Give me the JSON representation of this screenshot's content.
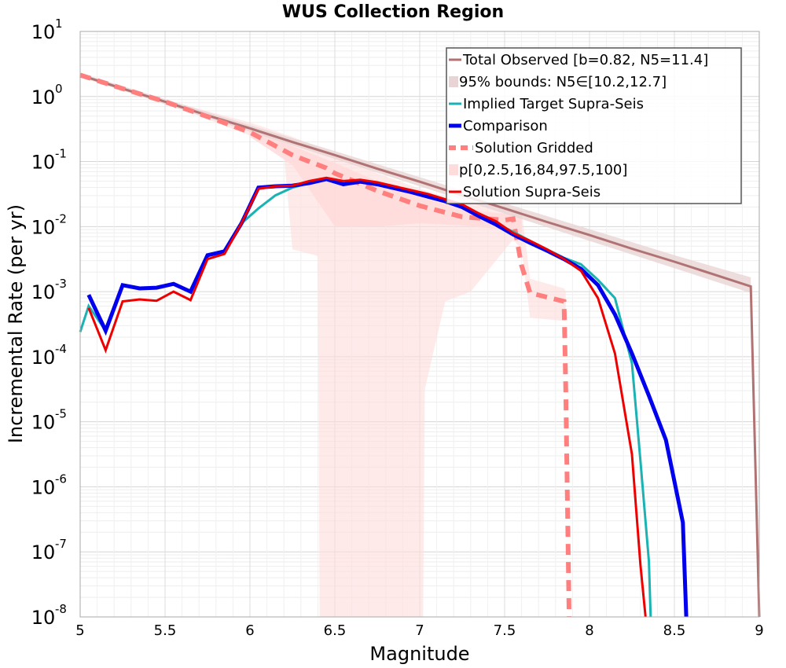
{
  "chart_data": {
    "type": "line",
    "title": "WUS Collection Region",
    "xlabel": "Magnitude",
    "ylabel": "Incremental Rate (per yr)",
    "xlim": [
      5,
      9
    ],
    "ylim_log10": [
      -8,
      1
    ],
    "y_scale": "log",
    "grid": true,
    "legend_placement": "top-right",
    "x_ticks": [
      "5",
      "5.5",
      "6",
      "6.5",
      "7",
      "7.5",
      "8",
      "8.5",
      "9"
    ],
    "y_ticks": [
      {
        "base": "10",
        "exp": "1"
      },
      {
        "base": "10",
        "exp": "0"
      },
      {
        "base": "10",
        "exp": "-1"
      },
      {
        "base": "10",
        "exp": "-2"
      },
      {
        "base": "10",
        "exp": "-3"
      },
      {
        "base": "10",
        "exp": "-4"
      },
      {
        "base": "10",
        "exp": "-5"
      },
      {
        "base": "10",
        "exp": "-6"
      },
      {
        "base": "10",
        "exp": "-7"
      },
      {
        "base": "10",
        "exp": "-8"
      }
    ],
    "colors": {
      "total_observed": "#b07272",
      "bounds_fill": "#e8d4d4",
      "implied_target": "#1ab2b2",
      "comparison": "#0000ee",
      "solution_gridded": "#ff7f7f",
      "percentile_fill": "#ffdcdc",
      "solution_supra": "#ee0000"
    },
    "legend": [
      {
        "key": "total_observed",
        "label": "Total Observed [b=0.82, N5=11.4]",
        "style": "line"
      },
      {
        "key": "bounds",
        "label": "95% bounds: N5∈[10.2,12.7]",
        "style": "band"
      },
      {
        "key": "implied_target",
        "label": "Implied Target Supra-Seis",
        "style": "line"
      },
      {
        "key": "comparison",
        "label": "Comparison",
        "style": "thick"
      },
      {
        "key": "solution_gridded",
        "label": "Solution Gridded",
        "style": "dashed"
      },
      {
        "key": "percentiles",
        "label": "p[0,2.5,16,84,97.5,100]",
        "style": "band"
      },
      {
        "key": "solution_supra",
        "label": "Solution Supra-Seis",
        "style": "line"
      }
    ],
    "series": {
      "total_observed": {
        "x": [
          5.0,
          5.25,
          5.5,
          5.75,
          6.0,
          6.25,
          6.5,
          6.75,
          7.0,
          7.25,
          7.5,
          7.75,
          8.0,
          8.25,
          8.5,
          8.75,
          8.95,
          9.0
        ],
        "log10y": [
          0.33,
          0.12,
          -0.08,
          -0.29,
          -0.49,
          -0.7,
          -0.9,
          -1.11,
          -1.31,
          -1.52,
          -1.72,
          -1.93,
          -2.13,
          -2.34,
          -2.54,
          -2.75,
          -2.92,
          -8.0
        ]
      },
      "bounds_upper": {
        "x": [
          5.0,
          5.5,
          6.0,
          6.5,
          7.0,
          7.5,
          8.0,
          8.5,
          8.95
        ],
        "log10y": [
          0.36,
          -0.04,
          -0.44,
          -0.84,
          -1.24,
          -1.64,
          -2.04,
          -2.44,
          -2.78
        ]
      },
      "bounds_lower": {
        "x": [
          5.0,
          5.5,
          6.0,
          6.5,
          7.0,
          7.5,
          8.0,
          8.5,
          8.95
        ],
        "log10y": [
          0.3,
          -0.12,
          -0.54,
          -0.96,
          -1.38,
          -1.8,
          -2.22,
          -2.64,
          -3.02
        ]
      },
      "implied_target": {
        "x": [
          5.0,
          5.05,
          5.15,
          5.25,
          5.35,
          5.45,
          5.55,
          5.65,
          5.75,
          5.85,
          5.95,
          6.05,
          6.15,
          6.25,
          6.35,
          6.45,
          6.55,
          6.65,
          6.75,
          6.85,
          6.95,
          7.05,
          7.15,
          7.25,
          7.35,
          7.45,
          7.55,
          7.65,
          7.75,
          7.85,
          7.95,
          8.05,
          8.15,
          8.25,
          8.3,
          8.35,
          8.36
        ],
        "log10y": [
          -3.62,
          -3.22,
          -3.6,
          -2.9,
          -2.95,
          -2.94,
          -2.88,
          -3.0,
          -2.44,
          -2.38,
          -1.95,
          -1.72,
          -1.52,
          -1.4,
          -1.33,
          -1.28,
          -1.36,
          -1.32,
          -1.36,
          -1.42,
          -1.48,
          -1.55,
          -1.62,
          -1.7,
          -1.82,
          -1.95,
          -2.08,
          -2.22,
          -2.35,
          -2.48,
          -2.58,
          -2.82,
          -3.1,
          -4.1,
          -5.6,
          -7.15,
          -8.0
        ]
      },
      "comparison": {
        "x": [
          5.05,
          5.15,
          5.25,
          5.35,
          5.45,
          5.55,
          5.65,
          5.75,
          5.85,
          5.95,
          6.05,
          6.15,
          6.25,
          6.35,
          6.45,
          6.55,
          6.65,
          6.75,
          6.85,
          6.95,
          7.05,
          7.15,
          7.25,
          7.35,
          7.45,
          7.55,
          7.65,
          7.75,
          7.85,
          7.95,
          8.05,
          8.15,
          8.25,
          8.35,
          8.45,
          8.55,
          8.57
        ],
        "log10y": [
          -3.05,
          -3.6,
          -2.9,
          -2.95,
          -2.94,
          -2.88,
          -3.0,
          -2.44,
          -2.38,
          -1.95,
          -1.4,
          -1.38,
          -1.37,
          -1.33,
          -1.27,
          -1.35,
          -1.31,
          -1.35,
          -1.41,
          -1.47,
          -1.54,
          -1.61,
          -1.7,
          -1.84,
          -1.97,
          -2.12,
          -2.25,
          -2.37,
          -2.5,
          -2.65,
          -2.9,
          -3.35,
          -3.95,
          -4.6,
          -5.28,
          -6.55,
          -8.0
        ]
      },
      "solution_gridded": {
        "x": [
          5.0,
          5.25,
          5.5,
          5.75,
          6.0,
          6.25,
          6.45,
          6.5,
          6.75,
          7.0,
          7.25,
          7.5,
          7.55,
          7.6,
          7.65,
          7.85,
          7.86,
          7.88
        ],
        "log10y": [
          0.33,
          0.12,
          -0.08,
          -0.31,
          -0.55,
          -0.9,
          -1.1,
          -1.18,
          -1.45,
          -1.68,
          -1.85,
          -1.9,
          -1.88,
          -2.6,
          -3.02,
          -3.15,
          -4.5,
          -8.0
        ]
      },
      "percentile_upper": {
        "x": [
          5.0,
          5.5,
          6.0,
          6.25,
          6.5,
          6.75,
          7.0,
          7.25,
          7.5,
          7.6,
          7.65,
          7.85,
          7.86
        ],
        "log10y": [
          0.35,
          -0.05,
          -0.4,
          -0.62,
          -0.88,
          -1.18,
          -1.42,
          -1.62,
          -1.7,
          -1.75,
          -2.8,
          -2.95,
          -3.0
        ]
      },
      "percentile_lower": {
        "x": [
          5.0,
          5.5,
          6.0,
          6.2,
          6.25,
          6.4,
          6.41,
          7.02,
          7.03,
          7.15,
          7.3,
          7.55,
          7.6,
          7.65,
          7.85,
          7.86
        ],
        "log10y": [
          0.3,
          -0.1,
          -0.6,
          -0.88,
          -2.35,
          -2.45,
          -8.0,
          -8.0,
          -4.5,
          -3.15,
          -3.0,
          -2.2,
          -2.35,
          -3.4,
          -3.45,
          -3.45
        ]
      },
      "percentile_inner_upper": {
        "x": [
          6.0,
          6.25,
          6.5,
          6.75,
          7.0,
          7.25,
          7.5,
          7.6
        ],
        "log10y": [
          -0.48,
          -0.76,
          -1.02,
          -1.3,
          -1.54,
          -1.74,
          -1.8,
          -1.82
        ]
      },
      "percentile_inner_lower": {
        "x": [
          6.0,
          6.25,
          6.5,
          6.75,
          7.0,
          7.25,
          7.5,
          7.6
        ],
        "log10y": [
          -0.62,
          -1.05,
          -2.0,
          -2.0,
          -1.95,
          -1.98,
          -2.05,
          -2.1
        ]
      },
      "solution_supra": {
        "x": [
          5.05,
          5.15,
          5.25,
          5.35,
          5.45,
          5.55,
          5.65,
          5.75,
          5.85,
          5.95,
          6.05,
          6.15,
          6.25,
          6.35,
          6.45,
          6.55,
          6.65,
          6.75,
          6.85,
          6.95,
          7.05,
          7.15,
          7.25,
          7.35,
          7.45,
          7.55,
          7.65,
          7.75,
          7.85,
          7.95,
          8.05,
          8.15,
          8.25,
          8.3,
          8.33
        ],
        "log10y": [
          -3.25,
          -3.9,
          -3.15,
          -3.12,
          -3.14,
          -3.0,
          -3.13,
          -2.5,
          -2.42,
          -1.95,
          -1.42,
          -1.38,
          -1.37,
          -1.3,
          -1.25,
          -1.3,
          -1.28,
          -1.32,
          -1.38,
          -1.44,
          -1.5,
          -1.58,
          -1.66,
          -1.8,
          -1.92,
          -2.1,
          -2.22,
          -2.35,
          -2.5,
          -2.68,
          -3.1,
          -3.95,
          -5.5,
          -7.2,
          -8.0
        ]
      }
    }
  }
}
